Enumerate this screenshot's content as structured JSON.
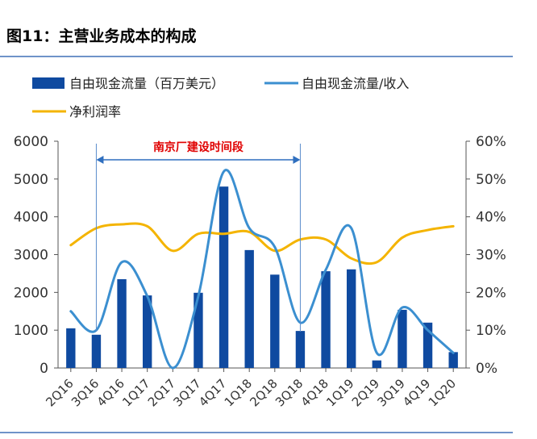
{
  "figure": {
    "title": "图11：主营业务成本的构成"
  },
  "chart_data": {
    "type": "bar",
    "categories": [
      "2Q16",
      "3Q16",
      "4Q16",
      "1Q17",
      "2Q17",
      "3Q17",
      "4Q17",
      "1Q18",
      "2Q18",
      "3Q18",
      "4Q18",
      "1Q19",
      "2Q19",
      "3Q19",
      "4Q19",
      "1Q20"
    ],
    "series": [
      {
        "name": "自由现金流量（百万美元）",
        "type": "bar",
        "axis": "left",
        "color": "#0f4aa0",
        "values": [
          1050,
          880,
          2350,
          1920,
          0,
          1990,
          4800,
          3120,
          2470,
          980,
          2560,
          2610,
          200,
          1540,
          1200,
          420
        ]
      },
      {
        "name": "自由现金流量/收入",
        "type": "line",
        "axis": "right",
        "color": "#3b8fd0",
        "values": [
          15,
          10,
          28,
          19,
          0,
          19,
          52,
          37,
          32,
          12,
          26,
          37,
          4,
          16,
          10,
          4
        ]
      },
      {
        "name": "净利润率",
        "type": "line",
        "axis": "right",
        "color": "#f4b400",
        "values": [
          32.5,
          37,
          38,
          37.5,
          31,
          35.5,
          35.5,
          36,
          31,
          34,
          34,
          29,
          28,
          34.5,
          36.5,
          37.5
        ]
      }
    ],
    "y_left": {
      "min": 0,
      "max": 6000,
      "ticks": [
        "0",
        "1000",
        "2000",
        "3000",
        "4000",
        "5000",
        "6000"
      ]
    },
    "y_right": {
      "min": 0,
      "max": 60,
      "ticks": [
        "0%",
        "10%",
        "20%",
        "30%",
        "40%",
        "50%",
        "60%"
      ]
    },
    "annotation": {
      "text": "南京厂建设时间段",
      "from": "3Q16",
      "to": "3Q18",
      "color": "#e00000"
    },
    "legend_position": "top-left",
    "grid": false
  }
}
